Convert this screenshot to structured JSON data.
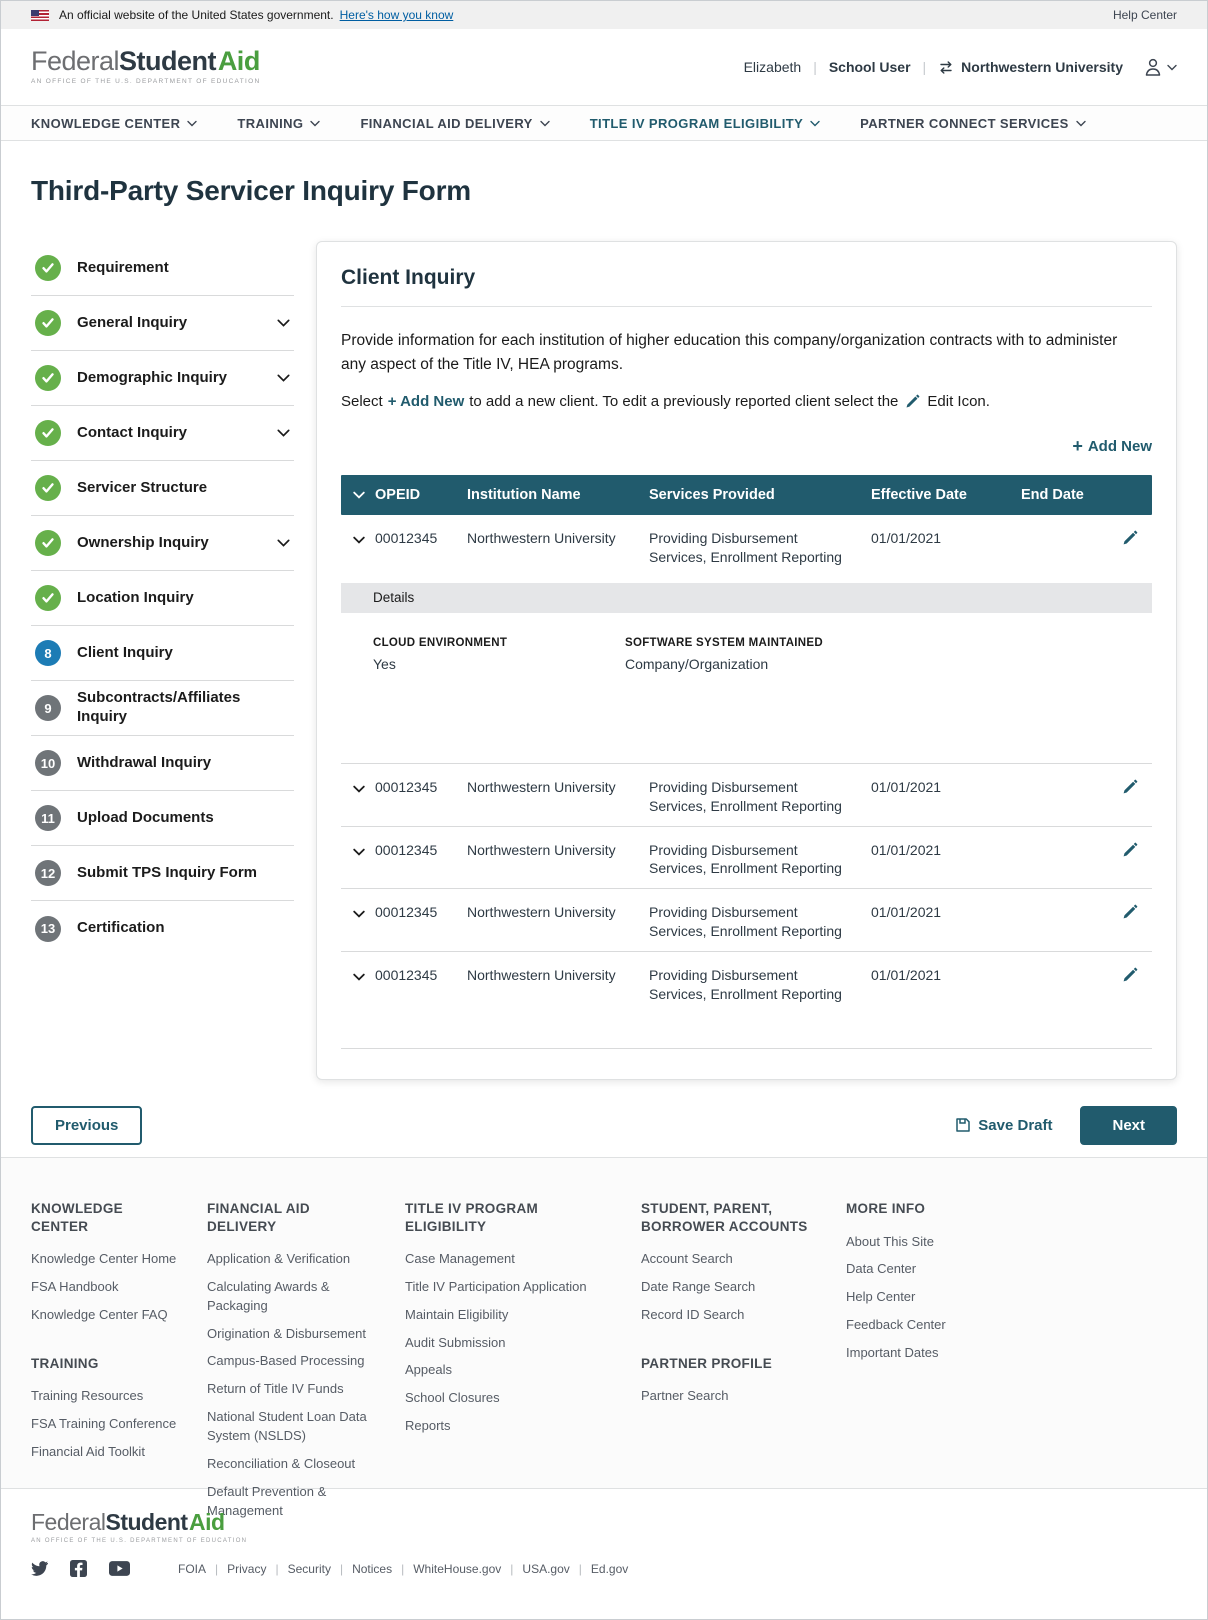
{
  "banner": {
    "official_text": "An official website of the United States government.",
    "how_link": "Here's how you know",
    "help_center": "Help Center"
  },
  "logo": {
    "federal": "Federal",
    "student": "Student",
    "aid": "Aid",
    "tagline": "An OFFICE of the U.S. DEPARTMENT of EDUCATION"
  },
  "header": {
    "user_name": "Elizabeth",
    "user_role": "School User",
    "organization": "Northwestern University"
  },
  "nav": {
    "items": [
      {
        "label": "KNOWLEDGE CENTER",
        "active": false
      },
      {
        "label": "TRAINING",
        "active": false
      },
      {
        "label": "FINANCIAL AID DELIVERY",
        "active": false
      },
      {
        "label": "TITLE IV PROGRAM ELIGIBILITY",
        "active": true
      },
      {
        "label": "PARTNER CONNECT SERVICES",
        "active": false
      }
    ]
  },
  "page": {
    "title": "Third-Party Servicer Inquiry Form"
  },
  "sidebar": {
    "items": [
      {
        "label": "Requirement",
        "status": "complete",
        "chevron": false
      },
      {
        "label": "General Inquiry",
        "status": "complete",
        "chevron": true
      },
      {
        "label": "Demographic Inquiry",
        "status": "complete",
        "chevron": true
      },
      {
        "label": "Contact Inquiry",
        "status": "complete",
        "chevron": true
      },
      {
        "label": "Servicer Structure",
        "status": "complete",
        "chevron": false
      },
      {
        "label": "Ownership Inquiry",
        "status": "complete",
        "chevron": true
      },
      {
        "label": "Location Inquiry",
        "status": "complete",
        "chevron": false
      },
      {
        "label": "Client Inquiry",
        "status": "active",
        "number": "8",
        "chevron": false
      },
      {
        "label": "Subcontracts/Affiliates Inquiry",
        "status": "pending",
        "number": "9",
        "chevron": false
      },
      {
        "label": "Withdrawal Inquiry",
        "status": "pending",
        "number": "10",
        "chevron": false
      },
      {
        "label": "Upload Documents",
        "status": "pending",
        "number": "11",
        "chevron": false
      },
      {
        "label": "Submit TPS Inquiry Form",
        "status": "pending",
        "number": "12",
        "chevron": false
      },
      {
        "label": "Certification",
        "status": "pending",
        "number": "13",
        "chevron": false
      }
    ]
  },
  "card": {
    "title": "Client Inquiry",
    "description": "Provide information for each institution of higher education this company/organization contracts with to administer any aspect of the Title IV, HEA programs.",
    "select_line": {
      "part1": "Select",
      "add_new": "+ Add New",
      "part2": "to add a new client. To edit a previously reported client select the",
      "part3": "Edit Icon."
    },
    "add_new_button": "+ Add New",
    "table": {
      "headers": {
        "opeid": "OPEID",
        "institution": "Institution Name",
        "services": "Services Provided",
        "effective": "Effective Date",
        "end": "End Date"
      },
      "rows": [
        {
          "opeid": "00012345",
          "institution": "Northwestern University",
          "services": "Providing Disbursement Services, Enrollment Reporting",
          "effective_date": "01/01/2021",
          "end_date": "",
          "expanded": true,
          "details": {
            "label": "Details",
            "cloud_label": "CLOUD ENVIRONMENT",
            "cloud_value": "Yes",
            "software_label": "SOFTWARE SYSTEM MAINTAINED",
            "software_value": "Company/Organization"
          }
        },
        {
          "opeid": "00012345",
          "institution": "Northwestern University",
          "services": "Providing Disbursement Services, Enrollment Reporting",
          "effective_date": "01/01/2021",
          "end_date": "",
          "expanded": false
        },
        {
          "opeid": "00012345",
          "institution": "Northwestern University",
          "services": "Providing Disbursement Services, Enrollment Reporting",
          "effective_date": "01/01/2021",
          "end_date": "",
          "expanded": false
        },
        {
          "opeid": "00012345",
          "institution": "Northwestern University",
          "services": "Providing Disbursement Services, Enrollment Reporting",
          "effective_date": "01/01/2021",
          "end_date": "",
          "expanded": false
        },
        {
          "opeid": "00012345",
          "institution": "Northwestern University",
          "services": "Providing Disbursement Services, Enrollment Reporting",
          "effective_date": "01/01/2021",
          "end_date": "",
          "expanded": false
        }
      ]
    }
  },
  "actions": {
    "previous": "Previous",
    "save_draft": "Save Draft",
    "next": "Next"
  },
  "footer": {
    "columns": [
      {
        "sections": [
          {
            "heading": "KNOWLEDGE CENTER",
            "links": [
              "Knowledge Center Home",
              "FSA Handbook",
              "Knowledge Center FAQ"
            ]
          },
          {
            "heading": "TRAINING",
            "links": [
              "Training Resources",
              "FSA Training Conference",
              "Financial Aid Toolkit"
            ]
          }
        ]
      },
      {
        "sections": [
          {
            "heading": "FINANCIAL AID DELIVERY",
            "links": [
              "Application & Verification",
              "Calculating Awards & Packaging",
              "Origination & Disbursement",
              "Campus-Based Processing",
              "Return of Title IV Funds",
              "National Student Loan Data System (NSLDS)",
              "Reconciliation & Closeout",
              "Default Prevention & Management"
            ]
          }
        ]
      },
      {
        "sections": [
          {
            "heading": "TITLE IV PROGRAM ELIGIBILITY",
            "links": [
              "Case Management",
              "Title IV Participation Application",
              "Maintain Eligibility",
              "Audit Submission",
              "Appeals",
              "School Closures",
              "Reports"
            ]
          }
        ]
      },
      {
        "sections": [
          {
            "heading": "STUDENT, PARENT, BORROWER ACCOUNTS",
            "links": [
              "Account Search",
              "Date Range Search",
              "Record ID Search"
            ]
          },
          {
            "heading": "PARTNER PROFILE",
            "links": [
              "Partner Search"
            ]
          }
        ]
      },
      {
        "sections": [
          {
            "heading": "MORE INFO",
            "links": [
              "About This Site",
              "Data Center",
              "Help Center",
              "Feedback Center",
              "Important Dates"
            ]
          }
        ]
      }
    ]
  },
  "bottom_footer": {
    "social": [
      "twitter",
      "facebook",
      "youtube"
    ],
    "links": [
      "FOIA",
      "Privacy",
      "Security",
      "Notices",
      "WhiteHouse.gov",
      "USA.gov",
      "Ed.gov"
    ]
  },
  "colors": {
    "accent_teal": "#215b6d",
    "complete_green": "#66b04b",
    "active_step_blue": "#1d7cb5",
    "pending_step_gray": "#6f7478",
    "link_blue": "#005ea2",
    "logo_green": "#4a9e3f",
    "banner_gray": "#f0f0f0"
  }
}
